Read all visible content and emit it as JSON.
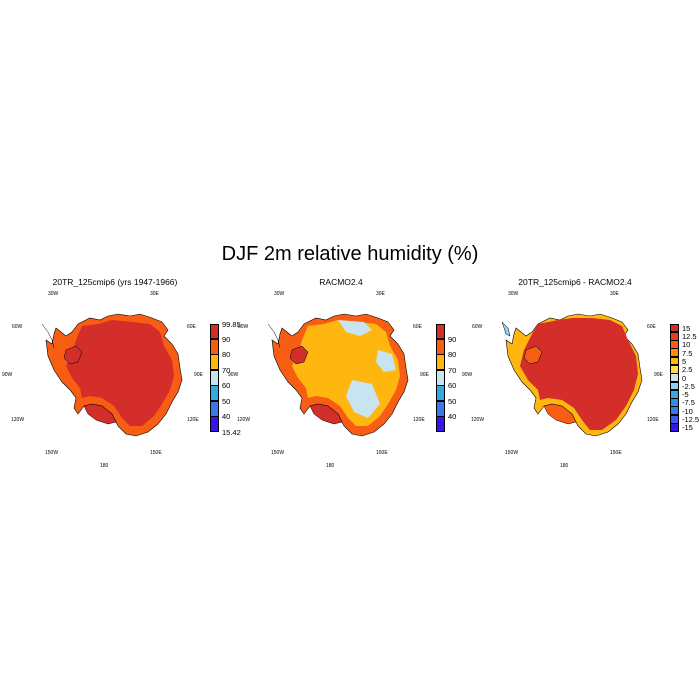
{
  "title": "DJF 2m relative humidity (%)",
  "longitude_labels": {
    "w30": "30W",
    "e30": "30E",
    "w60": "60W",
    "e60": "60E",
    "w90": "90W",
    "e90": "90E",
    "w120": "120W",
    "e120": "120E",
    "w150": "150W",
    "e150": "150E",
    "s180": "180"
  },
  "panels": [
    {
      "title": "20TR_125cmip6 (yrs 1947-1966)",
      "fill_color": "#d42e2a",
      "colorbar": {
        "colors": [
          "#d42e2a",
          "#f75e13",
          "#ffb70f",
          "#c8e4f0",
          "#35a8e6",
          "#3a7ae6",
          "#3a12ee"
        ],
        "labels": [
          "99.85",
          "90",
          "80",
          "70",
          "60",
          "50",
          "40",
          "15.42"
        ]
      }
    },
    {
      "title": "RACMO2.4",
      "fill_color": "#ffb70f",
      "colorbar": {
        "colors": [
          "#d42e2a",
          "#f75e13",
          "#ffb70f",
          "#c8e4f0",
          "#35a8e6",
          "#3a7ae6",
          "#3a12ee"
        ],
        "labels": [
          "90",
          "80",
          "70",
          "60",
          "50",
          "40"
        ]
      }
    },
    {
      "title": "20TR_125cmip6 - RACMO2.4",
      "fill_color": "#d42e2a",
      "colorbar": {
        "colors": [
          "#d42e2a",
          "#e63c22",
          "#f75e13",
          "#ff8a10",
          "#ffb70f",
          "#ffd94a",
          "#c8e4f0",
          "#8ed0f2",
          "#35a8e6",
          "#2e8ee6",
          "#3a7ae6",
          "#3a5aea",
          "#3a12ee"
        ],
        "labels": [
          "15",
          "12.5",
          "10",
          "7.5",
          "5",
          "2.5",
          "0",
          "-2.5",
          "-5",
          "-7.5",
          "-10",
          "-12.5",
          "-15"
        ]
      }
    }
  ]
}
